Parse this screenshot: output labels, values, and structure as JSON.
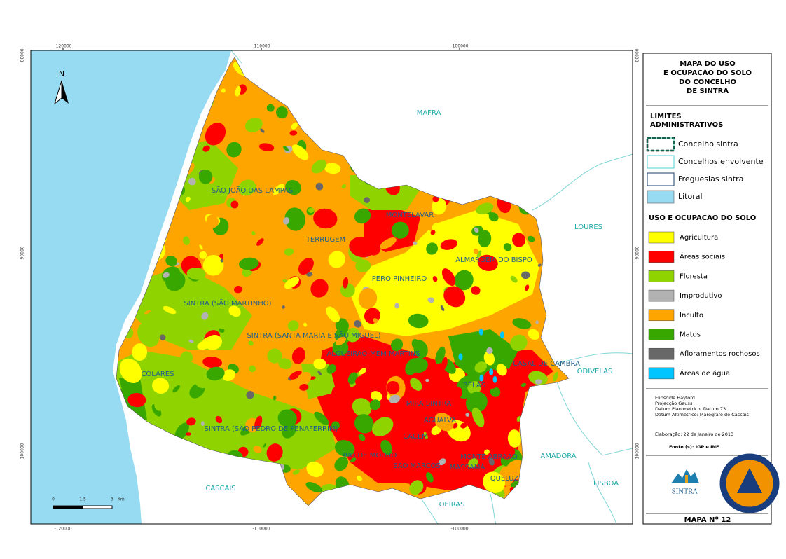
{
  "map": {
    "north_arrow": "N",
    "x_coordinates": [
      -120000,
      -110000,
      -100000
    ],
    "y_coordinates": [
      -80000,
      -90000,
      -100000
    ],
    "municipalities": [
      "MAFRA",
      "LOURES",
      "ODIVELAS",
      "AMADORA",
      "LISBOA",
      "OEIRAS",
      "CASCAIS"
    ],
    "parishes": [
      "SÃO JOÃO DAS LAMPAS",
      "MONTELAVAR",
      "TERRUGEM",
      "ALMARGEM DO BISPO",
      "PERO PINHEIRO",
      "SINTRA (SÃO MARTINHO)",
      "SINTRA (SANTA MARIA E SÃO MIGUEL)",
      "ALGUEIRÃO-MEM MARTINS",
      "CASAL DE CAMBRA",
      "COLARES",
      "BELAS",
      "MIRA SINTRA",
      "AGUALVA",
      "SINTRA (SÃO PEDRO DE PENAFERRIM)",
      "CACÉM",
      "RIO DE MOURO",
      "MONTE ABRAÃO",
      "SÃO MARCOS",
      "MASSAMÁ",
      "QUELUZ"
    ],
    "scale_bar": {
      "ticks": [
        0,
        1.5,
        3
      ],
      "unit": "Km"
    }
  },
  "legend": {
    "title": [
      "MAPA DO USO",
      "E OCUPAÇÃO DO SOLO",
      "DO CONCELHO",
      "DE SINTRA"
    ],
    "boundaries_heading": [
      "LIMITES",
      "ADMINISTRATIVOS"
    ],
    "boundaries": [
      "Concelho sintra",
      "Concelhos envolvente",
      "Freguesias sintra",
      "Litoral"
    ],
    "land_use_heading": "USO E OCUPAÇÃO DO SOLO",
    "land_use": [
      {
        "label": "Agricultura",
        "color": "#ffff00"
      },
      {
        "label": "Áreas sociais",
        "color": "#ff0000"
      },
      {
        "label": "Floresta",
        "color": "#8fd400"
      },
      {
        "label": "Improdutivo",
        "color": "#b2b2b2"
      },
      {
        "label": "Inculto",
        "color": "#ffa500"
      },
      {
        "label": "Matos",
        "color": "#38a800"
      },
      {
        "label": "Afloramentos rochosos",
        "color": "#686868"
      },
      {
        "label": "Áreas de água",
        "color": "#00c5ff"
      }
    ],
    "notes": [
      "Elipsóide Hayford",
      "Projecção Gauss",
      "Datum Planimétrico: Datum 73",
      "Datum Altimétrico: Marégrafo de Cascais"
    ],
    "date": "Elaboração: 22 de Janeiro de 2013",
    "source": "Fonte (s): IGP e INE",
    "logo_text": "SINTRA",
    "map_number": "MAPA Nº 12"
  }
}
